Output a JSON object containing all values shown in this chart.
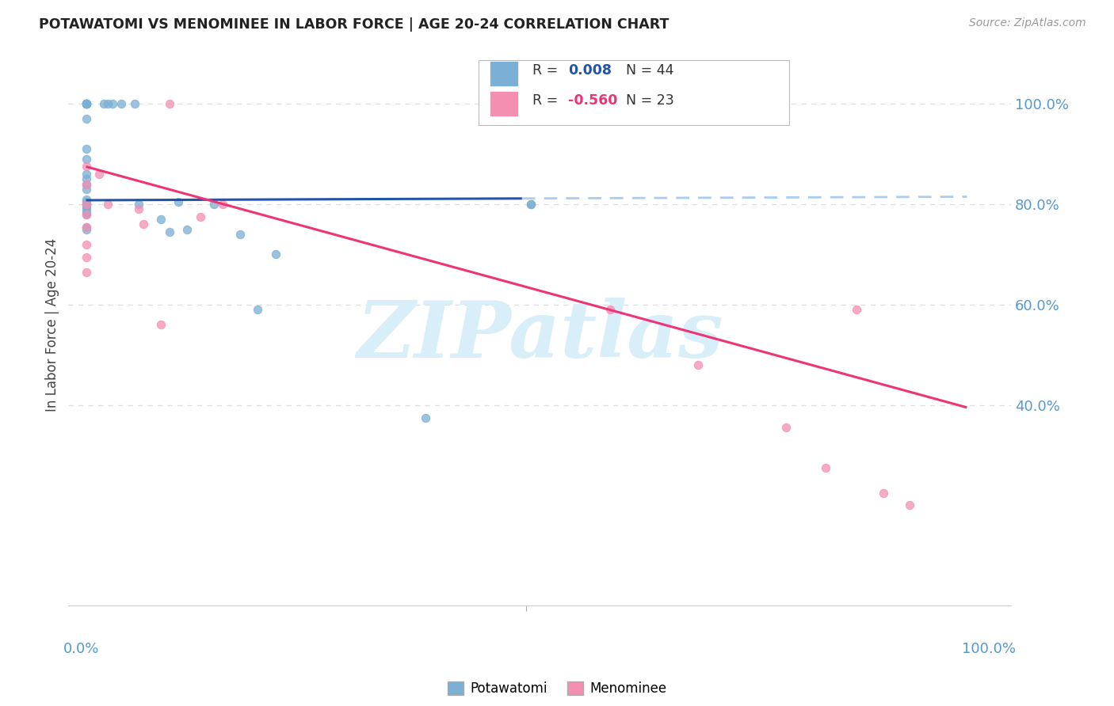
{
  "title": "POTAWATOMI VS MENOMINEE IN LABOR FORCE | AGE 20-24 CORRELATION CHART",
  "source": "Source: ZipAtlas.com",
  "ylabel": "In Labor Force | Age 20-24",
  "legend_blue_r": "0.008",
  "legend_blue_n": "44",
  "legend_pink_r": "-0.560",
  "legend_pink_n": "23",
  "blue_color": "#7BAFD4",
  "pink_color": "#F48FB1",
  "blue_line_color": "#2255AA",
  "pink_line_color": "#EE3377",
  "dashed_line_color": "#AACCEE",
  "watermark_color": "#D8EEF8",
  "grid_color": "#DDDDDD",
  "blue_scatter_x": [
    0.0,
    0.0,
    0.0,
    0.0,
    0.0,
    0.0,
    0.0,
    0.0,
    0.0,
    0.0,
    0.0,
    0.0,
    0.0,
    0.0,
    0.0,
    0.0,
    0.0,
    0.0,
    0.0,
    0.0,
    0.0,
    0.0,
    0.0,
    0.0,
    0.0,
    0.02,
    0.025,
    0.03,
    0.04,
    0.055,
    0.06,
    0.085,
    0.095,
    0.105,
    0.115,
    0.145,
    0.175,
    0.195,
    0.215,
    0.385,
    0.495,
    0.505,
    0.505,
    0.505
  ],
  "blue_scatter_y": [
    1.0,
    1.0,
    1.0,
    1.0,
    1.0,
    1.0,
    1.0,
    0.97,
    0.91,
    0.89,
    0.86,
    0.85,
    0.84,
    0.83,
    0.81,
    0.805,
    0.8,
    0.8,
    0.8,
    0.795,
    0.79,
    0.785,
    0.78,
    0.755,
    0.75,
    1.0,
    1.0,
    1.0,
    1.0,
    1.0,
    0.8,
    0.77,
    0.745,
    0.805,
    0.75,
    0.8,
    0.74,
    0.59,
    0.7,
    0.375,
    1.0,
    1.0,
    0.8,
    0.8
  ],
  "pink_scatter_x": [
    0.0,
    0.0,
    0.0,
    0.0,
    0.0,
    0.0,
    0.015,
    0.025,
    0.06,
    0.065,
    0.085,
    0.095,
    0.13,
    0.155,
    0.595,
    0.695,
    0.795,
    0.84,
    0.875,
    0.905,
    0.935,
    0.0,
    0.0
  ],
  "pink_scatter_y": [
    0.875,
    0.84,
    0.8,
    0.78,
    0.755,
    0.72,
    0.86,
    0.8,
    0.79,
    0.76,
    0.56,
    1.0,
    0.775,
    0.8,
    0.59,
    0.48,
    0.355,
    0.275,
    0.59,
    0.225,
    0.2,
    0.695,
    0.665
  ],
  "blue_line_start_x": 0.0,
  "blue_line_solid_end_x": 0.495,
  "blue_line_end_x": 1.0,
  "blue_line_y_at_0": 0.808,
  "blue_line_y_at_1": 0.815,
  "pink_line_y_at_0": 0.875,
  "pink_line_y_at_1": 0.395,
  "xlim": [
    -0.02,
    1.05
  ],
  "ylim": [
    0.0,
    1.12
  ],
  "right_yticks": [
    0.4,
    0.6,
    0.8,
    1.0
  ],
  "right_yticklabels": [
    "40.0%",
    "60.0%",
    "80.0%",
    "100.0%"
  ]
}
